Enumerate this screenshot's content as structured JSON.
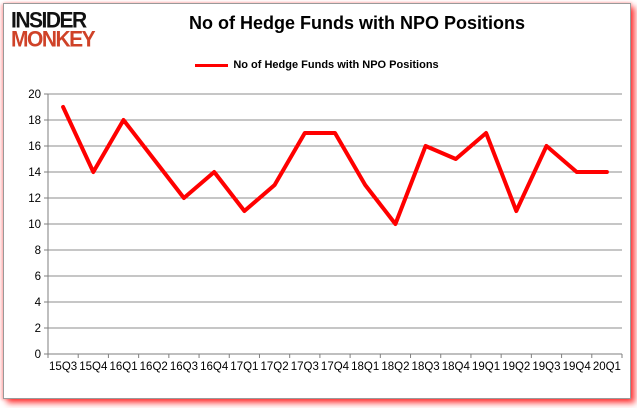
{
  "logo": {
    "line1": "INSIDER",
    "line2": "MONKEY",
    "line1_color": "#111111",
    "line2_color": "#cf4228"
  },
  "title": "No of Hedge Funds with NPO Positions",
  "legend": {
    "label": "No of Hedge Funds with NPO Positions",
    "line_color": "#ff0000"
  },
  "chart_data": {
    "type": "line",
    "title": "No of Hedge Funds with NPO Positions",
    "categories": [
      "15Q3",
      "15Q4",
      "16Q1",
      "16Q2",
      "16Q3",
      "16Q4",
      "17Q1",
      "17Q2",
      "17Q3",
      "17Q4",
      "18Q1",
      "18Q2",
      "18Q3",
      "18Q4",
      "19Q1",
      "19Q2",
      "19Q3",
      "19Q4",
      "20Q1"
    ],
    "series": [
      {
        "name": "No of Hedge Funds with NPO Positions",
        "color": "#ff0000",
        "values": [
          19,
          14,
          18,
          15,
          12,
          14,
          11,
          13,
          17,
          17,
          13,
          10,
          16,
          15,
          17,
          11,
          16,
          14,
          14
        ]
      }
    ],
    "xlabel": "",
    "ylabel": "",
    "ylim": [
      0,
      20
    ],
    "ytick_step": 2,
    "grid": "horizontal",
    "gridline_color": "#8c8c8c",
    "axis_color": "#7f7f7f",
    "tick_label_color": "#000000",
    "legend_position": "top-center"
  }
}
